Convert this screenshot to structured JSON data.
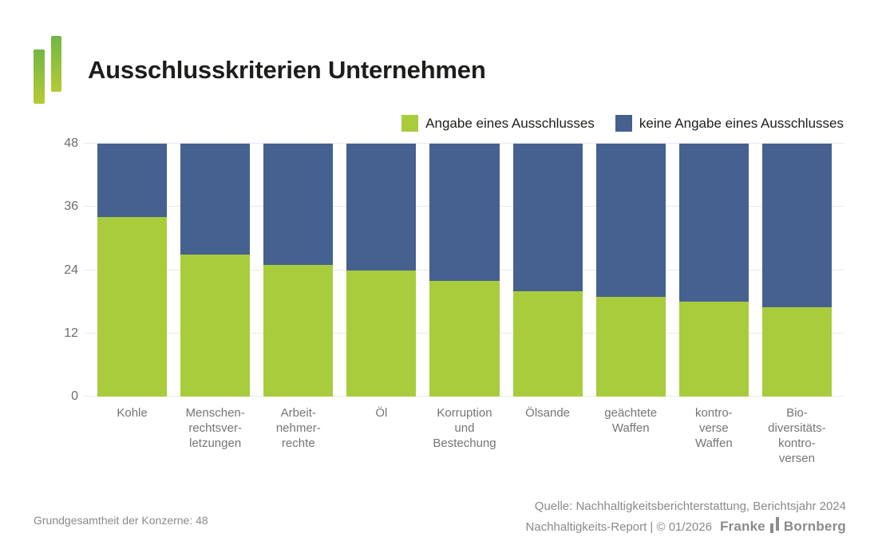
{
  "header": {
    "title": "Ausschlusskriterien Unternehmen"
  },
  "colors": {
    "green": "#a9cc3d",
    "blue": "#45618f",
    "gridline": "#e9e9e9",
    "axis_text": "#6e6e6e",
    "category_text": "#757575",
    "footer_text": "#8a8a8a",
    "title_text": "#1d1d1b",
    "logo_gradient_top": "#72b644",
    "logo_gradient_bottom": "#b5cb35",
    "wordmark_gray": "#8b8b8b"
  },
  "chart_data": {
    "type": "bar",
    "stacked": true,
    "title": "Ausschlusskriterien Unternehmen",
    "categories": [
      {
        "lines": [
          "Kohle"
        ]
      },
      {
        "lines": [
          "Menschen-",
          "rechtsver-",
          "letzungen"
        ]
      },
      {
        "lines": [
          "Arbeit-",
          "nehmer-",
          "rechte"
        ]
      },
      {
        "lines": [
          "Öl"
        ]
      },
      {
        "lines": [
          "Korruption",
          "und",
          "Bestechung"
        ]
      },
      {
        "lines": [
          "Ölsande"
        ]
      },
      {
        "lines": [
          "geächtete",
          "Waffen"
        ]
      },
      {
        "lines": [
          "kontro-",
          "verse",
          "Waffen"
        ]
      },
      {
        "lines": [
          "Bio-",
          "diversitäts-",
          "kontro-",
          "versen"
        ]
      }
    ],
    "series": [
      {
        "name": "Angabe eines Ausschlusses",
        "color": "#a9cc3d",
        "values": [
          34,
          27,
          25,
          24,
          22,
          20,
          19,
          18,
          17
        ]
      },
      {
        "name": "keine Angabe eines Ausschlusses",
        "color": "#45618f",
        "values": [
          14,
          21,
          23,
          24,
          26,
          28,
          29,
          30,
          31
        ]
      }
    ],
    "ylim": [
      0,
      48
    ],
    "yticks": [
      0,
      12,
      24,
      36,
      48
    ],
    "grid": true,
    "legend_position": "top-right"
  },
  "footer": {
    "left": "Grundgesamtheit der Konzerne: 48",
    "source_line": "Quelle: Nachhaltigkeitsberichterstattung, Berichtsjahr 2024",
    "report_line": "Nachhaltigkeits-Report | © 01/2026",
    "brand": {
      "first": "Franke",
      "second": "Bornberg"
    }
  }
}
